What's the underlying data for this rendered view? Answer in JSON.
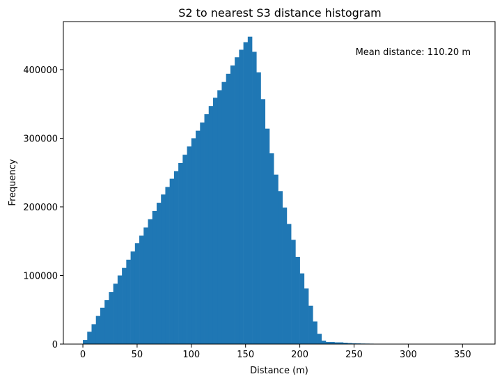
{
  "chart_data": {
    "type": "bar",
    "title": "S2 to nearest S3 distance histogram",
    "xlabel": "Distance (m)",
    "ylabel": "Frequency",
    "annotation": "Mean distance: 110.20 m",
    "bin_width": 4.0,
    "bin_start": 0,
    "xlim": [
      -18,
      380
    ],
    "ylim": [
      0,
      470000
    ],
    "xticks": [
      0,
      50,
      100,
      150,
      200,
      250,
      300,
      350
    ],
    "yticks": [
      0,
      100000,
      200000,
      300000,
      400000
    ],
    "grid": false,
    "color": "#1f77b4",
    "values": [
      6000,
      18000,
      29000,
      41000,
      53000,
      64000,
      76000,
      88000,
      100000,
      111000,
      123000,
      135000,
      147000,
      158000,
      170000,
      182000,
      194000,
      206000,
      218000,
      229000,
      241000,
      252000,
      264000,
      276000,
      288000,
      300000,
      311000,
      323000,
      335000,
      347000,
      359000,
      370000,
      382000,
      394000,
      406000,
      418000,
      429000,
      440000,
      448000,
      426000,
      396000,
      357000,
      314000,
      278000,
      247000,
      223000,
      199000,
      175000,
      152000,
      127000,
      103000,
      81000,
      56000,
      33000,
      15000,
      5000,
      3000,
      3000,
      2500,
      2500,
      2000,
      1500,
      1200,
      1000,
      800,
      700,
      600,
      500,
      400,
      350,
      300,
      250,
      200,
      180,
      160,
      140,
      120,
      100,
      90,
      80,
      70,
      60,
      50,
      45,
      40,
      30,
      25,
      20,
      15,
      10
    ]
  }
}
